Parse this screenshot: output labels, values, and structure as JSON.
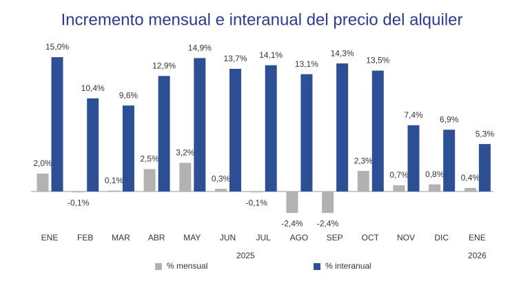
{
  "chart_data": {
    "type": "bar",
    "title": "Incremento mensual e interanual del precio del alquiler",
    "categories": [
      "ENE",
      "FEB",
      "MAR",
      "ABR",
      "MAY",
      "JUN",
      "JUL",
      "AGO",
      "SEP",
      "OCT",
      "NOV",
      "DIC",
      "ENE"
    ],
    "year_labels": [
      "2025",
      "2026"
    ],
    "series": [
      {
        "name": "% mensual",
        "color": "#b3b1b1",
        "values": [
          2.0,
          -0.1,
          0.1,
          2.5,
          3.2,
          0.3,
          -0.1,
          -2.4,
          -2.4,
          2.3,
          0.7,
          0.8,
          0.4
        ],
        "value_labels": [
          "2,0%",
          "-0,1%",
          "0,1%",
          "2,5%",
          "3,2%",
          "0,3%",
          "-0,1%",
          "-2,4%",
          "-2,4%",
          "2,3%",
          "0,7%",
          "0,8%",
          "0,4%"
        ]
      },
      {
        "name": "% interanual",
        "color": "#2d4f96",
        "values": [
          15.0,
          10.4,
          9.6,
          12.9,
          14.9,
          13.7,
          14.1,
          13.1,
          14.3,
          13.5,
          7.4,
          6.9,
          5.3
        ],
        "value_labels": [
          "15,0%",
          "10,4%",
          "9,6%",
          "12,9%",
          "14,9%",
          "13,7%",
          "14,1%",
          "13,1%",
          "14,3%",
          "13,5%",
          "7,4%",
          "6,9%",
          "5,3%"
        ]
      }
    ]
  }
}
